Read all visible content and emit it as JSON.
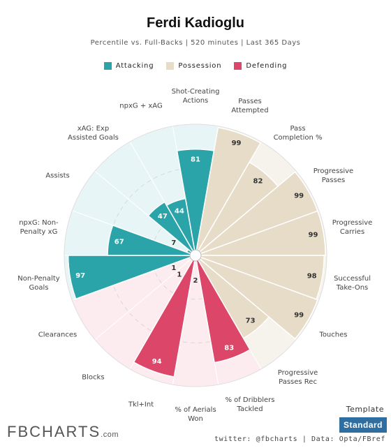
{
  "chart_data": {
    "type": "pizza",
    "title": "Ferdi Kadioglu",
    "subtitle": "Percentile vs. Full-Backs | 520 minutes | Last 365 Days",
    "categories": [
      "Shot-Creating\nActions",
      "Passes\nAttempted",
      "Pass\nCompletion %",
      "Progressive\nPasses",
      "Progressive\nCarries",
      "Successful\nTake-Ons",
      "Touches",
      "Progressive\nPasses Rec",
      "% of Dribblers\nTackled",
      "% of Aerials\nWon",
      "Tkl+Int",
      "Blocks",
      "Clearances",
      "Non-Penalty\nGoals",
      "npxG: Non-\nPenalty xG",
      "Assists",
      "xAG: Exp\nAssisted Goals",
      "npxG + xAG"
    ],
    "series": [
      {
        "name": "Attacking",
        "color": "#2aa4a9",
        "background": "#e8f5f6",
        "label_color": "#ffffff",
        "values": [
          81,
          null,
          null,
          null,
          null,
          null,
          null,
          null,
          null,
          null,
          null,
          null,
          null,
          97,
          67,
          7,
          47,
          44
        ]
      },
      {
        "name": "Possession",
        "color": "#e6dcc8",
        "background": "#f6f3ec",
        "label_color": "#333333",
        "values": [
          null,
          99,
          82,
          99,
          99,
          98,
          99,
          73,
          null,
          null,
          null,
          null,
          null,
          null,
          null,
          null,
          null,
          null
        ]
      },
      {
        "name": "Defending",
        "color": "#dc4668",
        "background": "#fcebef",
        "label_color": "#ffffff",
        "values": [
          null,
          null,
          null,
          null,
          null,
          null,
          null,
          null,
          83,
          2,
          94,
          1,
          1,
          null,
          null,
          null,
          null,
          null
        ]
      }
    ],
    "rlim": [
      0,
      100
    ],
    "template_label": "Template",
    "template": "Standard",
    "footer": "twitter: @fbcharts | Data: Opta/FBref",
    "logo": "FBCHARTS",
    "logo_suffix": ".com"
  }
}
